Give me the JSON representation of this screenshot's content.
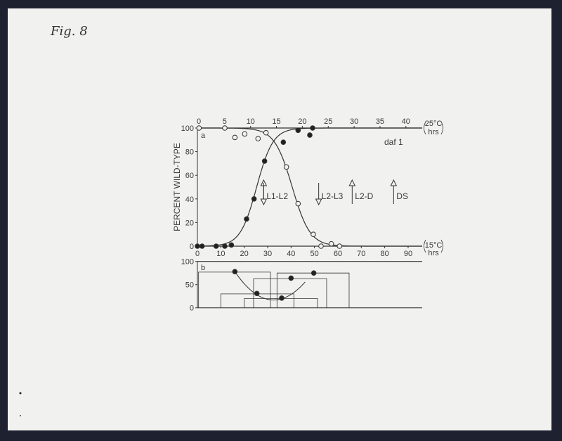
{
  "figure_label": "Fig. 8",
  "chart_data": [
    {
      "type": "scatter",
      "panel_label": "a",
      "annotation": "daf 1",
      "ylabel": "PERCENT WILD-TYPE",
      "ylim": [
        0,
        100
      ],
      "yticks": [
        0,
        20,
        40,
        60,
        80,
        100
      ],
      "x_bottom": {
        "unit_label": [
          "15°C",
          "hrs"
        ],
        "lim": [
          0,
          96
        ],
        "ticks": [
          0,
          10,
          20,
          30,
          40,
          50,
          60,
          70,
          80,
          90
        ]
      },
      "x_top": {
        "unit_label": [
          "25°C",
          "hrs"
        ],
        "lim": [
          0,
          43
        ],
        "ticks": [
          0,
          5,
          10,
          15,
          20,
          25,
          30,
          35,
          40
        ]
      },
      "grid": false,
      "series": [
        {
          "marker": "filled-circle",
          "x": [
            0,
            2,
            8,
            11.7,
            14.5,
            21,
            24.2,
            28.7,
            36.7,
            43,
            48,
            49.2
          ],
          "y": [
            0,
            0,
            0,
            0,
            1,
            23,
            40,
            72,
            88,
            98,
            94,
            100
          ]
        },
        {
          "marker": "open-circle",
          "x": [
            0.7,
            11.7,
            16,
            20.2,
            25.9,
            29.3,
            38,
            43,
            49.5,
            52.8,
            57.2,
            60.7
          ],
          "y": [
            100,
            100,
            92,
            95,
            91,
            96,
            67,
            36,
            10,
            0,
            2,
            0
          ]
        }
      ],
      "markers": [
        {
          "label": "L1-L2",
          "x": 28.3,
          "arrows": [
            "up",
            "down"
          ]
        },
        {
          "label": "L2-L3",
          "x": 51.8,
          "arrows": [
            "down"
          ]
        },
        {
          "label": "L2-D",
          "x": 66.1,
          "arrows": [
            "up"
          ]
        },
        {
          "label": "DS",
          "x": 83.8,
          "arrows": [
            "up"
          ]
        }
      ]
    },
    {
      "type": "scatter",
      "panel_label": "b",
      "ylim": [
        0,
        100
      ],
      "yticks": [
        0,
        50,
        100
      ],
      "x_shared_with": "a",
      "series": [
        {
          "marker": "filled-circle",
          "x": [
            16,
            25.4,
            36,
            40,
            49.7
          ],
          "y": [
            78,
            31,
            21,
            64,
            75
          ]
        }
      ],
      "intervals": [
        {
          "x": [
            0.5,
            31.2
          ],
          "y": 77
        },
        {
          "x": [
            24,
            55.2
          ],
          "y": 63
        },
        {
          "x": [
            34,
            64.8
          ],
          "y": 75
        },
        {
          "x": [
            10,
            41.2
          ],
          "y": 30
        },
        {
          "x": [
            20,
            51.3
          ],
          "y": 20
        }
      ]
    }
  ]
}
